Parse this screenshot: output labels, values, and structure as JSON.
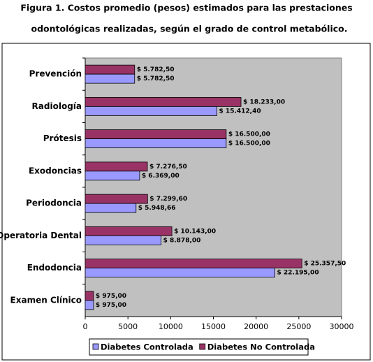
{
  "chart_data": {
    "type": "bar",
    "orientation": "horizontal",
    "title": [
      "Figura 1. Costos promedio (pesos) estimados para las prestaciones",
      "odontológicas realizadas, según el grado de control metabólico."
    ],
    "categories": [
      "Prevención",
      "Radiología",
      "Prótesis",
      "Exodoncias",
      "Periodoncia",
      "Operatoria Dental",
      "Endodoncia",
      "Examen Clínico"
    ],
    "series": [
      {
        "name": "Diabetes Controlada",
        "color": "#9999ff",
        "values": [
          5782.5,
          15412.4,
          16500,
          6369,
          5948.66,
          8878,
          22195,
          975
        ],
        "value_labels": [
          "$ 5.782,50",
          "$ 15.412,40",
          "$ 16.500,00",
          "$ 6.369,00",
          "$ 5.948,66",
          "$ 8.878,00",
          "$ 22.195,00",
          "$ 975,00"
        ]
      },
      {
        "name": "Diabetes No Controlada",
        "color": "#993366",
        "values": [
          5782.5,
          18233,
          16500,
          7276.5,
          7299.6,
          10143,
          25357.5,
          975
        ],
        "value_labels": [
          "$ 5.782,50",
          "$ 18.233,00",
          "$ 16.500,00",
          "$ 7.276,50",
          "$ 7.299,60",
          "$ 10.143,00",
          "$ 25.357,50",
          "$ 975,00"
        ]
      }
    ],
    "xlim": [
      0,
      30000
    ],
    "xticks": [
      0,
      5000,
      10000,
      15000,
      20000,
      25000,
      30000
    ],
    "legend": "bottom"
  }
}
